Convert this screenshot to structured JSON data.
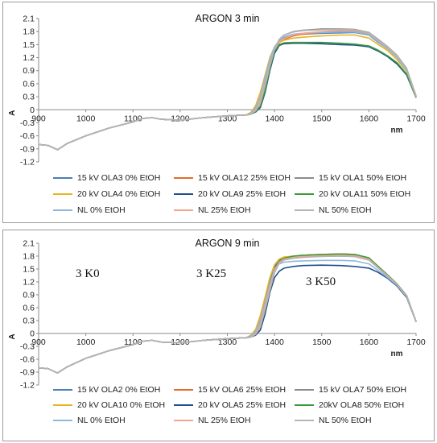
{
  "chart_data": [
    {
      "type": "line",
      "title": "ARGON 3 min",
      "xlabel": "nm",
      "ylabel": "A",
      "xlim": [
        900,
        1700
      ],
      "ylim": [
        -1.2,
        2.1
      ],
      "xticks": [
        "900",
        "1000",
        "1100",
        "1200",
        "1300",
        "1400",
        "1500",
        "1600",
        "1700"
      ],
      "yticks": [
        "2.1",
        "1.8",
        "1.5",
        "1.2",
        "0.9",
        "0.6",
        "0.3",
        "0",
        "-0.3",
        "-0.6",
        "-0.9",
        "-1.2"
      ],
      "grid": false,
      "legend": "bottom",
      "annotations": [],
      "x": [
        900,
        920,
        940,
        960,
        1000,
        1050,
        1100,
        1120,
        1140,
        1160,
        1200,
        1250,
        1300,
        1340,
        1350,
        1360,
        1370,
        1380,
        1390,
        1400,
        1410,
        1420,
        1440,
        1460,
        1500,
        1540,
        1570,
        1600,
        1620,
        1640,
        1660,
        1680,
        1700
      ],
      "series": [
        {
          "name": "15 kV OLA3 0% EtOH",
          "color": "#4a7ebb",
          "values": [
            -0.8,
            -0.82,
            -0.92,
            -0.78,
            -0.6,
            -0.42,
            -0.28,
            -0.2,
            -0.18,
            -0.22,
            -0.24,
            -0.18,
            -0.14,
            -0.12,
            -0.08,
            0.05,
            0.3,
            0.7,
            1.1,
            1.42,
            1.58,
            1.66,
            1.72,
            1.74,
            1.76,
            1.77,
            1.78,
            1.72,
            1.55,
            1.4,
            1.2,
            0.9,
            0.3
          ]
        },
        {
          "name": "15 kV OLA12 25% EtOH",
          "color": "#e36c2e",
          "values": [
            -0.8,
            -0.82,
            -0.92,
            -0.78,
            -0.6,
            -0.42,
            -0.28,
            -0.2,
            -0.18,
            -0.22,
            -0.24,
            -0.18,
            -0.14,
            -0.12,
            -0.1,
            0.0,
            0.2,
            0.6,
            1.0,
            1.35,
            1.55,
            1.62,
            1.7,
            1.74,
            1.78,
            1.82,
            1.82,
            1.75,
            1.58,
            1.42,
            1.22,
            0.92,
            0.3
          ]
        },
        {
          "name": "15 kV OLA1 50% EtOH",
          "color": "#8c8c8c",
          "values": [
            -0.8,
            -0.82,
            -0.92,
            -0.78,
            -0.6,
            -0.42,
            -0.28,
            -0.2,
            -0.18,
            -0.22,
            -0.24,
            -0.18,
            -0.14,
            -0.12,
            -0.1,
            -0.02,
            0.15,
            0.55,
            1.0,
            1.4,
            1.62,
            1.72,
            1.8,
            1.83,
            1.86,
            1.86,
            1.85,
            1.78,
            1.62,
            1.45,
            1.25,
            0.95,
            0.32
          ]
        },
        {
          "name": "20 kV OLA4 0% EtOH",
          "color": "#e6b422",
          "values": [
            -0.8,
            -0.82,
            -0.92,
            -0.78,
            -0.6,
            -0.42,
            -0.28,
            -0.2,
            -0.18,
            -0.22,
            -0.24,
            -0.18,
            -0.14,
            -0.12,
            -0.06,
            0.1,
            0.4,
            0.8,
            1.2,
            1.45,
            1.55,
            1.6,
            1.65,
            1.67,
            1.7,
            1.72,
            1.72,
            1.65,
            1.5,
            1.36,
            1.15,
            0.88,
            0.3
          ]
        },
        {
          "name": "20 kV OLA9 25% EtOH",
          "color": "#1f4e8c",
          "values": [
            -0.8,
            -0.82,
            -0.92,
            -0.78,
            -0.6,
            -0.42,
            -0.28,
            -0.2,
            -0.18,
            -0.22,
            -0.24,
            -0.18,
            -0.14,
            -0.12,
            -0.1,
            -0.05,
            0.05,
            0.4,
            0.9,
            1.3,
            1.48,
            1.52,
            1.53,
            1.53,
            1.52,
            1.5,
            1.49,
            1.45,
            1.35,
            1.22,
            1.05,
            0.8,
            0.28
          ]
        },
        {
          "name": "20 kV OLA11 50% EtOH",
          "color": "#3a9a3a",
          "values": [
            -0.8,
            -0.82,
            -0.92,
            -0.78,
            -0.6,
            -0.42,
            -0.28,
            -0.2,
            -0.18,
            -0.22,
            -0.24,
            -0.18,
            -0.14,
            -0.12,
            -0.1,
            -0.04,
            0.08,
            0.45,
            0.95,
            1.35,
            1.5,
            1.54,
            1.55,
            1.55,
            1.55,
            1.53,
            1.51,
            1.47,
            1.37,
            1.24,
            1.08,
            0.82,
            0.28
          ]
        },
        {
          "name": "NL 0% EtOH",
          "color": "#8db8e0",
          "values": [
            -0.8,
            -0.82,
            -0.92,
            -0.78,
            -0.6,
            -0.42,
            -0.28,
            -0.2,
            -0.18,
            -0.22,
            -0.24,
            -0.18,
            -0.14,
            -0.12,
            -0.08,
            0.05,
            0.3,
            0.75,
            1.15,
            1.45,
            1.6,
            1.68,
            1.74,
            1.76,
            1.78,
            1.79,
            1.79,
            1.73,
            1.56,
            1.4,
            1.2,
            0.9,
            0.3
          ]
        },
        {
          "name": "NL 25% EtOH",
          "color": "#f2a68c",
          "values": [
            -0.8,
            -0.82,
            -0.92,
            -0.78,
            -0.6,
            -0.42,
            -0.28,
            -0.2,
            -0.18,
            -0.22,
            -0.24,
            -0.18,
            -0.14,
            -0.12,
            -0.1,
            0.0,
            0.22,
            0.62,
            1.05,
            1.38,
            1.56,
            1.64,
            1.72,
            1.76,
            1.8,
            1.83,
            1.83,
            1.76,
            1.6,
            1.43,
            1.23,
            0.93,
            0.3
          ]
        },
        {
          "name": "NL 50% EtOH",
          "color": "#b4b4b4",
          "values": [
            -0.8,
            -0.82,
            -0.92,
            -0.78,
            -0.6,
            -0.42,
            -0.28,
            -0.2,
            -0.18,
            -0.22,
            -0.24,
            -0.18,
            -0.14,
            -0.12,
            -0.1,
            -0.02,
            0.15,
            0.55,
            1.0,
            1.4,
            1.62,
            1.72,
            1.79,
            1.82,
            1.84,
            1.85,
            1.84,
            1.77,
            1.61,
            1.44,
            1.24,
            0.94,
            0.32
          ]
        }
      ]
    },
    {
      "type": "line",
      "title": "ARGON 9 min",
      "xlabel": "nm",
      "ylabel": "A",
      "xlim": [
        900,
        1700
      ],
      "ylim": [
        -1.2,
        2.1
      ],
      "xticks": [
        "900",
        "1000",
        "1100",
        "1200",
        "1300",
        "1400",
        "1500",
        "1600",
        "1700"
      ],
      "yticks": [
        "2.1",
        "1.8",
        "1.5",
        "1.2",
        "0.9",
        "0.6",
        "0.3",
        "0",
        "-0.3",
        "-0.6",
        "-0.9",
        "-1.2"
      ],
      "grid": false,
      "legend": "bottom",
      "annotations": [
        "3 K0",
        "3 K25",
        "3 K50"
      ],
      "x": [
        900,
        920,
        940,
        960,
        1000,
        1050,
        1100,
        1120,
        1140,
        1160,
        1200,
        1250,
        1300,
        1340,
        1350,
        1360,
        1370,
        1380,
        1390,
        1400,
        1410,
        1420,
        1440,
        1460,
        1500,
        1540,
        1570,
        1600,
        1620,
        1640,
        1660,
        1680,
        1700
      ],
      "series": [
        {
          "name": "15 kV OLA2 0% EtOH",
          "color": "#4a7ebb",
          "values": [
            -0.8,
            -0.82,
            -0.92,
            -0.78,
            -0.58,
            -0.4,
            -0.26,
            -0.18,
            -0.16,
            -0.2,
            -0.22,
            -0.16,
            -0.12,
            -0.1,
            -0.06,
            0.06,
            0.32,
            0.75,
            1.2,
            1.55,
            1.7,
            1.76,
            1.8,
            1.82,
            1.84,
            1.85,
            1.84,
            1.76,
            1.55,
            1.35,
            1.15,
            0.88,
            0.28
          ]
        },
        {
          "name": "15 kV OLA6 25% EtOH",
          "color": "#e36c2e",
          "values": [
            -0.8,
            -0.82,
            -0.92,
            -0.78,
            -0.58,
            -0.4,
            -0.26,
            -0.18,
            -0.16,
            -0.2,
            -0.22,
            -0.16,
            -0.12,
            -0.1,
            -0.08,
            0.0,
            0.2,
            0.6,
            1.05,
            1.45,
            1.65,
            1.72,
            1.76,
            1.78,
            1.8,
            1.81,
            1.8,
            1.72,
            1.52,
            1.33,
            1.13,
            0.86,
            0.28
          ]
        },
        {
          "name": "15 kV OLA7 50% EtOH",
          "color": "#8c8c8c",
          "values": [
            -0.8,
            -0.82,
            -0.92,
            -0.78,
            -0.58,
            -0.4,
            -0.26,
            -0.18,
            -0.16,
            -0.2,
            -0.22,
            -0.16,
            -0.12,
            -0.1,
            -0.08,
            -0.02,
            0.15,
            0.55,
            1.0,
            1.42,
            1.64,
            1.72,
            1.76,
            1.78,
            1.8,
            1.8,
            1.79,
            1.71,
            1.52,
            1.33,
            1.13,
            0.86,
            0.28
          ]
        },
        {
          "name": "20 kV OLA10 0% EtOH",
          "color": "#e6b422",
          "values": [
            -0.8,
            -0.82,
            -0.92,
            -0.78,
            -0.58,
            -0.4,
            -0.26,
            -0.18,
            -0.16,
            -0.2,
            -0.22,
            -0.16,
            -0.12,
            -0.1,
            -0.04,
            0.1,
            0.42,
            0.85,
            1.3,
            1.6,
            1.73,
            1.78,
            1.8,
            1.8,
            1.82,
            1.83,
            1.83,
            1.74,
            1.54,
            1.34,
            1.14,
            0.87,
            0.28
          ]
        },
        {
          "name": "20 kV OLA5 25% EtOH",
          "color": "#1f4e8c",
          "values": [
            -0.8,
            -0.82,
            -0.92,
            -0.78,
            -0.58,
            -0.4,
            -0.26,
            -0.18,
            -0.16,
            -0.2,
            -0.22,
            -0.16,
            -0.12,
            -0.1,
            -0.08,
            -0.04,
            0.08,
            0.45,
            0.95,
            1.3,
            1.45,
            1.52,
            1.56,
            1.58,
            1.59,
            1.58,
            1.56,
            1.52,
            1.42,
            1.28,
            1.1,
            0.84,
            0.27
          ]
        },
        {
          "name": "20kV OLA8 50% EtOH",
          "color": "#3a9a3a",
          "values": [
            -0.8,
            -0.82,
            -0.92,
            -0.78,
            -0.58,
            -0.4,
            -0.26,
            -0.18,
            -0.16,
            -0.2,
            -0.22,
            -0.16,
            -0.12,
            -0.1,
            -0.06,
            0.04,
            0.28,
            0.7,
            1.15,
            1.5,
            1.68,
            1.75,
            1.8,
            1.82,
            1.84,
            1.85,
            1.84,
            1.76,
            1.56,
            1.36,
            1.15,
            0.88,
            0.28
          ]
        },
        {
          "name": "NL 0% EtOH",
          "color": "#8db8e0",
          "values": [
            -0.8,
            -0.82,
            -0.92,
            -0.78,
            -0.58,
            -0.4,
            -0.26,
            -0.18,
            -0.16,
            -0.2,
            -0.22,
            -0.16,
            -0.12,
            -0.1,
            -0.06,
            0.05,
            0.3,
            0.72,
            1.15,
            1.5,
            1.62,
            1.66,
            1.68,
            1.69,
            1.7,
            1.7,
            1.69,
            1.62,
            1.46,
            1.3,
            1.12,
            0.86,
            0.28
          ]
        },
        {
          "name": "NL 25% EtOH",
          "color": "#f2a68c",
          "values": [
            -0.8,
            -0.82,
            -0.92,
            -0.78,
            -0.58,
            -0.4,
            -0.26,
            -0.18,
            -0.16,
            -0.2,
            -0.22,
            -0.16,
            -0.12,
            -0.1,
            -0.08,
            0.0,
            0.22,
            0.62,
            1.08,
            1.47,
            1.66,
            1.73,
            1.77,
            1.79,
            1.81,
            1.82,
            1.81,
            1.73,
            1.53,
            1.34,
            1.14,
            0.87,
            0.28
          ]
        },
        {
          "name": "NL 50% EtOH",
          "color": "#b4b4b4",
          "values": [
            -0.8,
            -0.82,
            -0.92,
            -0.78,
            -0.58,
            -0.4,
            -0.26,
            -0.18,
            -0.16,
            -0.2,
            -0.22,
            -0.16,
            -0.12,
            -0.1,
            -0.08,
            -0.02,
            0.15,
            0.55,
            1.0,
            1.42,
            1.63,
            1.71,
            1.75,
            1.77,
            1.79,
            1.8,
            1.79,
            1.71,
            1.52,
            1.33,
            1.13,
            0.86,
            0.28
          ]
        }
      ]
    }
  ]
}
